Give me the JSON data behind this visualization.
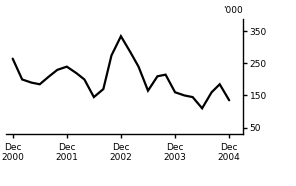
{
  "x_labels": [
    "Dec\n2000",
    "Dec\n2001",
    "Dec\n2002",
    "Dec\n2003",
    "Dec\n2004"
  ],
  "x_positions": [
    0,
    4,
    8,
    12,
    16
  ],
  "y_unit_label": "'000",
  "yticks": [
    50,
    150,
    250,
    350
  ],
  "ylim": [
    30,
    390
  ],
  "xlim": [
    -0.5,
    17
  ],
  "line_color": "#000000",
  "line_width": 1.6,
  "background_color": "#ffffff",
  "data_x": [
    0,
    0.7,
    1.4,
    2.0,
    2.7,
    3.3,
    4.0,
    4.7,
    5.3,
    6.0,
    6.7,
    7.3,
    8.0,
    8.7,
    9.3,
    10.0,
    10.7,
    11.3,
    12.0,
    12.7,
    13.3,
    14.0,
    14.7,
    15.3,
    16.0
  ],
  "data_y": [
    265,
    200,
    190,
    185,
    210,
    230,
    240,
    220,
    200,
    145,
    170,
    275,
    335,
    285,
    240,
    165,
    210,
    215,
    160,
    150,
    145,
    110,
    160,
    185,
    135
  ]
}
